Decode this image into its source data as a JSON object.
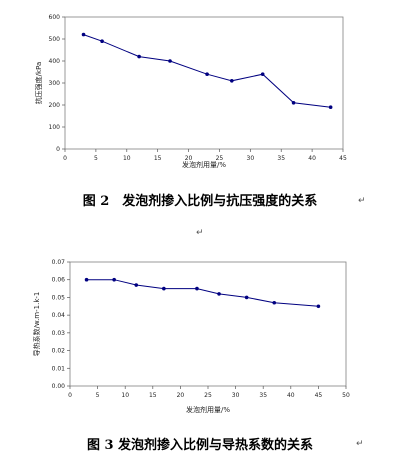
{
  "figures": [
    {
      "caption": "图 2　发泡剂掺入比例与抗压强度的关系"
    },
    {
      "caption": "图 3  发泡剂掺入比例与导热系数的关系"
    }
  ],
  "return_mark": "↵",
  "chart_data": [
    {
      "type": "line",
      "xlabel": "发泡剂用量/%",
      "ylabel": "抗压强度/kPa",
      "xlim": [
        0,
        45
      ],
      "ylim": [
        0,
        600
      ],
      "xticks": [
        0,
        5,
        10,
        15,
        20,
        25,
        30,
        35,
        40,
        45
      ],
      "yticks": [
        0,
        100,
        200,
        300,
        400,
        500,
        600
      ],
      "grid": false,
      "series": [
        {
          "x": [
            3,
            6,
            12,
            17,
            23,
            27,
            32,
            37,
            43
          ],
          "values": [
            520,
            490,
            420,
            400,
            340,
            310,
            340,
            210,
            190
          ]
        }
      ],
      "colors": {
        "line": "#000080",
        "marker": "#000080"
      }
    },
    {
      "type": "line",
      "xlabel": "发泡剂用量/%",
      "ylabel": "导热系数/w.m-1.k-1",
      "xlim": [
        0,
        50
      ],
      "ylim": [
        0,
        0.07
      ],
      "xticks": [
        0,
        5,
        10,
        15,
        20,
        25,
        30,
        35,
        40,
        45,
        50
      ],
      "yticks": [
        0,
        0.01,
        0.02,
        0.03,
        0.04,
        0.05,
        0.06,
        0.07
      ],
      "grid": false,
      "series": [
        {
          "x": [
            3,
            8,
            12,
            17,
            23,
            27,
            32,
            37,
            45
          ],
          "values": [
            0.06,
            0.06,
            0.057,
            0.055,
            0.055,
            0.052,
            0.05,
            0.047,
            0.045
          ]
        }
      ],
      "colors": {
        "line": "#000080",
        "marker": "#000080"
      }
    }
  ]
}
